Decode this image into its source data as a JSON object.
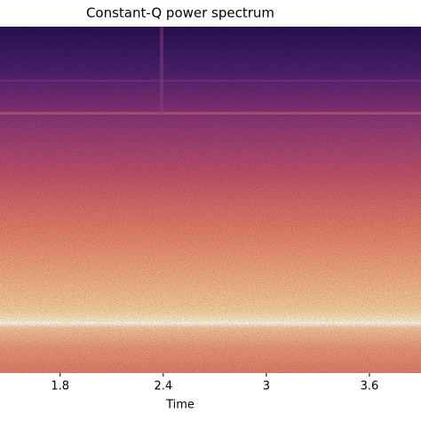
{
  "chart_data": {
    "type": "spectrogram",
    "title": "Constant-Q power spectrum",
    "xlabel": "Time",
    "xlim": [
      1.45,
      3.9
    ],
    "xticks": [
      1.8,
      2.4,
      3,
      3.6
    ]
  }
}
